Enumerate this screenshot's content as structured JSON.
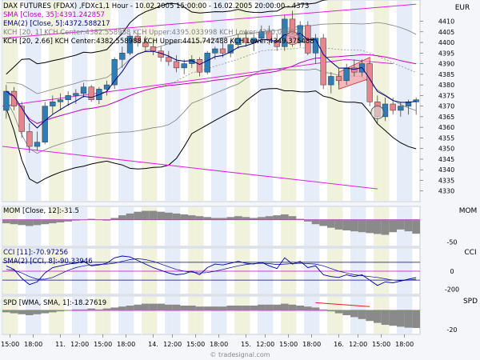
{
  "chart_data": [
    {
      "type": "candlestick",
      "pane": "price",
      "currency_label": "EUR",
      "legend": [
        {
          "text": "DAX FUTURES (FDAX) ,FDXc1,1 Hour - 10.02.2005 15:00:00 - 16.02.2005 20:00:00 - 4373",
          "color": "#000000"
        },
        {
          "text": "SMA [Close, 35]:4391.242857",
          "color": "#c000c0"
        },
        {
          "text": "EMA(2) [Close, 5]:4372.588217",
          "color": "#000080"
        },
        {
          "text": "KCH [20, 1] KCH Center:4382.558988 KCH Upper:4395.033998 KCH Lower:4370.083979",
          "color": "#808080"
        },
        {
          "text": "KCH [20, 2.66] KCH Center:4382.558988 KCH Upper:4415.742488 KCH Lower:4349.375488",
          "color": "#000000"
        }
      ],
      "ylim": [
        4325,
        4420
      ],
      "yticks": [
        4330,
        4335,
        4340,
        4345,
        4350,
        4355,
        4360,
        4365,
        4370,
        4375,
        4380,
        4385,
        4390,
        4395,
        4400,
        4405,
        4410
      ],
      "x_labels": [
        "15:00",
        "18:00",
        "11.",
        "12:00",
        "15:00",
        "18:00",
        "14.",
        "12:00",
        "15:00",
        "18:00",
        "15.",
        "12:00",
        "15:00",
        "18:00",
        "16.",
        "12:00",
        "15:00",
        "18:00"
      ],
      "x_label_positions": [
        1,
        4,
        7.5,
        10,
        13,
        16,
        19.5,
        22,
        25,
        28,
        31.5,
        34,
        37,
        40,
        43.5,
        46,
        49,
        52
      ],
      "candles": [
        {
          "o": 4368,
          "h": 4380,
          "l": 4364,
          "c": 4377
        },
        {
          "o": 4377,
          "h": 4379,
          "l": 4368,
          "c": 4370
        },
        {
          "o": 4370,
          "h": 4372,
          "l": 4355,
          "c": 4358
        },
        {
          "o": 4358,
          "h": 4362,
          "l": 4348,
          "c": 4351
        },
        {
          "o": 4351,
          "h": 4358,
          "l": 4349,
          "c": 4353
        },
        {
          "o": 4353,
          "h": 4372,
          "l": 4352,
          "c": 4370
        },
        {
          "o": 4370,
          "h": 4375,
          "l": 4366,
          "c": 4372
        },
        {
          "o": 4372,
          "h": 4376,
          "l": 4368,
          "c": 4373
        },
        {
          "o": 4373,
          "h": 4377,
          "l": 4370,
          "c": 4375
        },
        {
          "o": 4375,
          "h": 4378,
          "l": 4371,
          "c": 4376
        },
        {
          "o": 4376,
          "h": 4381,
          "l": 4374,
          "c": 4379
        },
        {
          "o": 4379,
          "h": 4380,
          "l": 4372,
          "c": 4373
        },
        {
          "o": 4373,
          "h": 4379,
          "l": 4371,
          "c": 4378
        },
        {
          "o": 4378,
          "h": 4382,
          "l": 4375,
          "c": 4380
        },
        {
          "o": 4380,
          "h": 4393,
          "l": 4378,
          "c": 4392
        },
        {
          "o": 4392,
          "h": 4398,
          "l": 4388,
          "c": 4395
        },
        {
          "o": 4395,
          "h": 4404,
          "l": 4394,
          "c": 4403
        },
        {
          "o": 4403,
          "h": 4406,
          "l": 4398,
          "c": 4400
        },
        {
          "o": 4400,
          "h": 4403,
          "l": 4396,
          "c": 4398
        },
        {
          "o": 4398,
          "h": 4401,
          "l": 4394,
          "c": 4396
        },
        {
          "o": 4396,
          "h": 4398,
          "l": 4391,
          "c": 4393
        },
        {
          "o": 4393,
          "h": 4396,
          "l": 4389,
          "c": 4391
        },
        {
          "o": 4391,
          "h": 4394,
          "l": 4386,
          "c": 4388
        },
        {
          "o": 4388,
          "h": 4392,
          "l": 4385,
          "c": 4390
        },
        {
          "o": 4390,
          "h": 4394,
          "l": 4388,
          "c": 4392
        },
        {
          "o": 4392,
          "h": 4393,
          "l": 4384,
          "c": 4386
        },
        {
          "o": 4386,
          "h": 4396,
          "l": 4385,
          "c": 4395
        },
        {
          "o": 4395,
          "h": 4398,
          "l": 4392,
          "c": 4397
        },
        {
          "o": 4397,
          "h": 4400,
          "l": 4393,
          "c": 4395
        },
        {
          "o": 4395,
          "h": 4401,
          "l": 4393,
          "c": 4399
        },
        {
          "o": 4399,
          "h": 4404,
          "l": 4397,
          "c": 4402
        },
        {
          "o": 4402,
          "h": 4406,
          "l": 4398,
          "c": 4400
        },
        {
          "o": 4400,
          "h": 4404,
          "l": 4396,
          "c": 4402
        },
        {
          "o": 4402,
          "h": 4408,
          "l": 4400,
          "c": 4405
        },
        {
          "o": 4405,
          "h": 4408,
          "l": 4399,
          "c": 4401
        },
        {
          "o": 4401,
          "h": 4404,
          "l": 4396,
          "c": 4398
        },
        {
          "o": 4398,
          "h": 4413,
          "l": 4396,
          "c": 4411
        },
        {
          "o": 4411,
          "h": 4415,
          "l": 4398,
          "c": 4400
        },
        {
          "o": 4400,
          "h": 4410,
          "l": 4398,
          "c": 4408
        },
        {
          "o": 4408,
          "h": 4410,
          "l": 4394,
          "c": 4395
        },
        {
          "o": 4395,
          "h": 4404,
          "l": 4390,
          "c": 4402
        },
        {
          "o": 4402,
          "h": 4404,
          "l": 4378,
          "c": 4380
        },
        {
          "o": 4380,
          "h": 4386,
          "l": 4376,
          "c": 4384
        },
        {
          "o": 4384,
          "h": 4388,
          "l": 4380,
          "c": 4382
        },
        {
          "o": 4382,
          "h": 4390,
          "l": 4380,
          "c": 4388
        },
        {
          "o": 4388,
          "h": 4392,
          "l": 4384,
          "c": 4386
        },
        {
          "o": 4386,
          "h": 4392,
          "l": 4384,
          "c": 4390
        },
        {
          "o": 4390,
          "h": 4391,
          "l": 4370,
          "c": 4372
        },
        {
          "o": 4372,
          "h": 4375,
          "l": 4362,
          "c": 4365
        },
        {
          "o": 4365,
          "h": 4374,
          "l": 4363,
          "c": 4371
        },
        {
          "o": 4371,
          "h": 4374,
          "l": 4366,
          "c": 4368
        },
        {
          "o": 4368,
          "h": 4372,
          "l": 4365,
          "c": 4370
        },
        {
          "o": 4370,
          "h": 4373,
          "l": 4366,
          "c": 4372
        },
        {
          "o": 4372,
          "h": 4374,
          "l": 4366,
          "c": 4373
        }
      ],
      "colors": {
        "up": "#2e7db5",
        "down": "#e8848b",
        "sma": "#c000c0",
        "ema": "#000080",
        "kch_inner": "#808080",
        "kch_outer": "#000000",
        "trend": "#e020e0"
      }
    },
    {
      "type": "bar",
      "pane": "MOM",
      "legend": "MOM [Close, 12]:-31.5",
      "right_label": "MOM",
      "yticks": [
        -50
      ],
      "ylim": [
        -60,
        30
      ],
      "values": [
        -8,
        -10,
        -12,
        -14,
        -12,
        -10,
        -8,
        -6,
        -4,
        -2,
        0,
        2,
        0,
        -2,
        4,
        10,
        14,
        18,
        20,
        20,
        18,
        16,
        14,
        12,
        10,
        8,
        6,
        4,
        4,
        6,
        8,
        6,
        4,
        6,
        8,
        10,
        12,
        8,
        2,
        -4,
        -10,
        -14,
        -18,
        -22,
        -24,
        -26,
        -28,
        -30,
        -32,
        -34,
        -28,
        -22,
        -26,
        -31.5
      ]
    },
    {
      "type": "line",
      "pane": "CCI",
      "legend": [
        "CCI [11]:-70.97256",
        "SMA(2) [CCI, 8]:-90.33946"
      ],
      "right_label": "CCI",
      "yticks": [
        0,
        -200
      ],
      "ylim": [
        -260,
        260
      ],
      "levels": [
        100,
        -100
      ],
      "series": [
        {
          "values": [
            60,
            20,
            -80,
            -150,
            -120,
            -20,
            40,
            60,
            80,
            90,
            110,
            60,
            70,
            90,
            150,
            170,
            160,
            120,
            80,
            40,
            10,
            -20,
            -40,
            -30,
            0,
            -40,
            40,
            80,
            70,
            90,
            110,
            90,
            80,
            100,
            60,
            30,
            150,
            80,
            110,
            40,
            60,
            -40,
            -60,
            -70,
            -40,
            -60,
            -40,
            -100,
            -160,
            -120,
            -130,
            -110,
            -90,
            -71
          ]
        },
        {
          "values": [
            20,
            10,
            -20,
            -60,
            -90,
            -90,
            -70,
            -30,
            10,
            40,
            60,
            70,
            75,
            80,
            90,
            110,
            130,
            140,
            130,
            110,
            80,
            50,
            20,
            0,
            -10,
            -20,
            -15,
            0,
            20,
            40,
            60,
            75,
            85,
            90,
            85,
            75,
            80,
            85,
            90,
            85,
            80,
            60,
            30,
            0,
            -20,
            -40,
            -50,
            -60,
            -70,
            -85,
            -100,
            -105,
            -100,
            -90
          ]
        }
      ]
    },
    {
      "type": "bar",
      "pane": "SPD",
      "legend": "SPD [WMA, SMA, 1]:-18.27619",
      "right_label": "SPD",
      "yticks": [
        -20
      ],
      "ylim": [
        -25,
        15
      ],
      "values": [
        -2,
        -3,
        -4,
        -5,
        -4,
        -3,
        -2,
        -1,
        0,
        1,
        1,
        2,
        1,
        2,
        3,
        4,
        5,
        6,
        7,
        7,
        7,
        6,
        6,
        5,
        5,
        4,
        4,
        4,
        4,
        5,
        5,
        5,
        5,
        6,
        6,
        6,
        7,
        6,
        5,
        4,
        3,
        1,
        -1,
        -3,
        -5,
        -7,
        -9,
        -11,
        -13,
        -15,
        -16,
        -17,
        -18,
        -18.3
      ]
    }
  ],
  "footer": {
    "watermark": "© tradesignal.com"
  }
}
